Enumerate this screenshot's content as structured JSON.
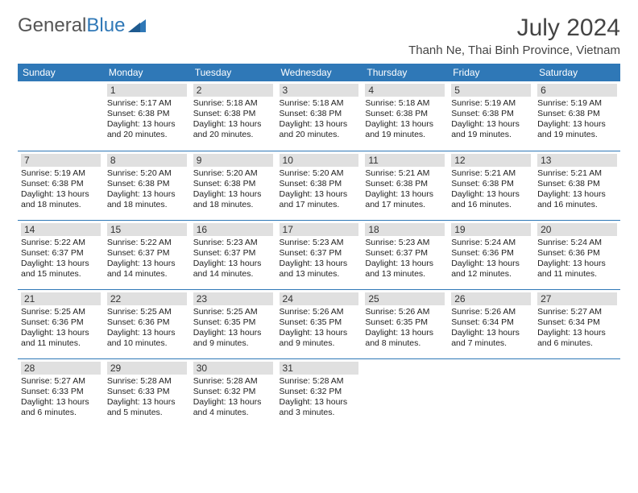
{
  "brand": {
    "part1": "General",
    "part2": "Blue"
  },
  "title": "July 2024",
  "location": "Thanh Ne, Thai Binh Province, Vietnam",
  "colors": {
    "header_bg": "#2f78b7",
    "header_text": "#ffffff",
    "daynum_bg": "#e0e0e0",
    "row_divider": "#2f78b7",
    "title_color": "#444444",
    "body_text": "#222222",
    "logo_gray": "#555555",
    "logo_blue": "#2f78b7"
  },
  "day_headers": [
    "Sunday",
    "Monday",
    "Tuesday",
    "Wednesday",
    "Thursday",
    "Friday",
    "Saturday"
  ],
  "weeks": [
    [
      {
        "num": "",
        "lines": []
      },
      {
        "num": "1",
        "lines": [
          "Sunrise: 5:17 AM",
          "Sunset: 6:38 PM",
          "Daylight: 13 hours",
          "and 20 minutes."
        ]
      },
      {
        "num": "2",
        "lines": [
          "Sunrise: 5:18 AM",
          "Sunset: 6:38 PM",
          "Daylight: 13 hours",
          "and 20 minutes."
        ]
      },
      {
        "num": "3",
        "lines": [
          "Sunrise: 5:18 AM",
          "Sunset: 6:38 PM",
          "Daylight: 13 hours",
          "and 20 minutes."
        ]
      },
      {
        "num": "4",
        "lines": [
          "Sunrise: 5:18 AM",
          "Sunset: 6:38 PM",
          "Daylight: 13 hours",
          "and 19 minutes."
        ]
      },
      {
        "num": "5",
        "lines": [
          "Sunrise: 5:19 AM",
          "Sunset: 6:38 PM",
          "Daylight: 13 hours",
          "and 19 minutes."
        ]
      },
      {
        "num": "6",
        "lines": [
          "Sunrise: 5:19 AM",
          "Sunset: 6:38 PM",
          "Daylight: 13 hours",
          "and 19 minutes."
        ]
      }
    ],
    [
      {
        "num": "7",
        "lines": [
          "Sunrise: 5:19 AM",
          "Sunset: 6:38 PM",
          "Daylight: 13 hours",
          "and 18 minutes."
        ]
      },
      {
        "num": "8",
        "lines": [
          "Sunrise: 5:20 AM",
          "Sunset: 6:38 PM",
          "Daylight: 13 hours",
          "and 18 minutes."
        ]
      },
      {
        "num": "9",
        "lines": [
          "Sunrise: 5:20 AM",
          "Sunset: 6:38 PM",
          "Daylight: 13 hours",
          "and 18 minutes."
        ]
      },
      {
        "num": "10",
        "lines": [
          "Sunrise: 5:20 AM",
          "Sunset: 6:38 PM",
          "Daylight: 13 hours",
          "and 17 minutes."
        ]
      },
      {
        "num": "11",
        "lines": [
          "Sunrise: 5:21 AM",
          "Sunset: 6:38 PM",
          "Daylight: 13 hours",
          "and 17 minutes."
        ]
      },
      {
        "num": "12",
        "lines": [
          "Sunrise: 5:21 AM",
          "Sunset: 6:38 PM",
          "Daylight: 13 hours",
          "and 16 minutes."
        ]
      },
      {
        "num": "13",
        "lines": [
          "Sunrise: 5:21 AM",
          "Sunset: 6:38 PM",
          "Daylight: 13 hours",
          "and 16 minutes."
        ]
      }
    ],
    [
      {
        "num": "14",
        "lines": [
          "Sunrise: 5:22 AM",
          "Sunset: 6:37 PM",
          "Daylight: 13 hours",
          "and 15 minutes."
        ]
      },
      {
        "num": "15",
        "lines": [
          "Sunrise: 5:22 AM",
          "Sunset: 6:37 PM",
          "Daylight: 13 hours",
          "and 14 minutes."
        ]
      },
      {
        "num": "16",
        "lines": [
          "Sunrise: 5:23 AM",
          "Sunset: 6:37 PM",
          "Daylight: 13 hours",
          "and 14 minutes."
        ]
      },
      {
        "num": "17",
        "lines": [
          "Sunrise: 5:23 AM",
          "Sunset: 6:37 PM",
          "Daylight: 13 hours",
          "and 13 minutes."
        ]
      },
      {
        "num": "18",
        "lines": [
          "Sunrise: 5:23 AM",
          "Sunset: 6:37 PM",
          "Daylight: 13 hours",
          "and 13 minutes."
        ]
      },
      {
        "num": "19",
        "lines": [
          "Sunrise: 5:24 AM",
          "Sunset: 6:36 PM",
          "Daylight: 13 hours",
          "and 12 minutes."
        ]
      },
      {
        "num": "20",
        "lines": [
          "Sunrise: 5:24 AM",
          "Sunset: 6:36 PM",
          "Daylight: 13 hours",
          "and 11 minutes."
        ]
      }
    ],
    [
      {
        "num": "21",
        "lines": [
          "Sunrise: 5:25 AM",
          "Sunset: 6:36 PM",
          "Daylight: 13 hours",
          "and 11 minutes."
        ]
      },
      {
        "num": "22",
        "lines": [
          "Sunrise: 5:25 AM",
          "Sunset: 6:36 PM",
          "Daylight: 13 hours",
          "and 10 minutes."
        ]
      },
      {
        "num": "23",
        "lines": [
          "Sunrise: 5:25 AM",
          "Sunset: 6:35 PM",
          "Daylight: 13 hours",
          "and 9 minutes."
        ]
      },
      {
        "num": "24",
        "lines": [
          "Sunrise: 5:26 AM",
          "Sunset: 6:35 PM",
          "Daylight: 13 hours",
          "and 9 minutes."
        ]
      },
      {
        "num": "25",
        "lines": [
          "Sunrise: 5:26 AM",
          "Sunset: 6:35 PM",
          "Daylight: 13 hours",
          "and 8 minutes."
        ]
      },
      {
        "num": "26",
        "lines": [
          "Sunrise: 5:26 AM",
          "Sunset: 6:34 PM",
          "Daylight: 13 hours",
          "and 7 minutes."
        ]
      },
      {
        "num": "27",
        "lines": [
          "Sunrise: 5:27 AM",
          "Sunset: 6:34 PM",
          "Daylight: 13 hours",
          "and 6 minutes."
        ]
      }
    ],
    [
      {
        "num": "28",
        "lines": [
          "Sunrise: 5:27 AM",
          "Sunset: 6:33 PM",
          "Daylight: 13 hours",
          "and 6 minutes."
        ]
      },
      {
        "num": "29",
        "lines": [
          "Sunrise: 5:28 AM",
          "Sunset: 6:33 PM",
          "Daylight: 13 hours",
          "and 5 minutes."
        ]
      },
      {
        "num": "30",
        "lines": [
          "Sunrise: 5:28 AM",
          "Sunset: 6:32 PM",
          "Daylight: 13 hours",
          "and 4 minutes."
        ]
      },
      {
        "num": "31",
        "lines": [
          "Sunrise: 5:28 AM",
          "Sunset: 6:32 PM",
          "Daylight: 13 hours",
          "and 3 minutes."
        ]
      },
      {
        "num": "",
        "lines": []
      },
      {
        "num": "",
        "lines": []
      },
      {
        "num": "",
        "lines": []
      }
    ]
  ]
}
